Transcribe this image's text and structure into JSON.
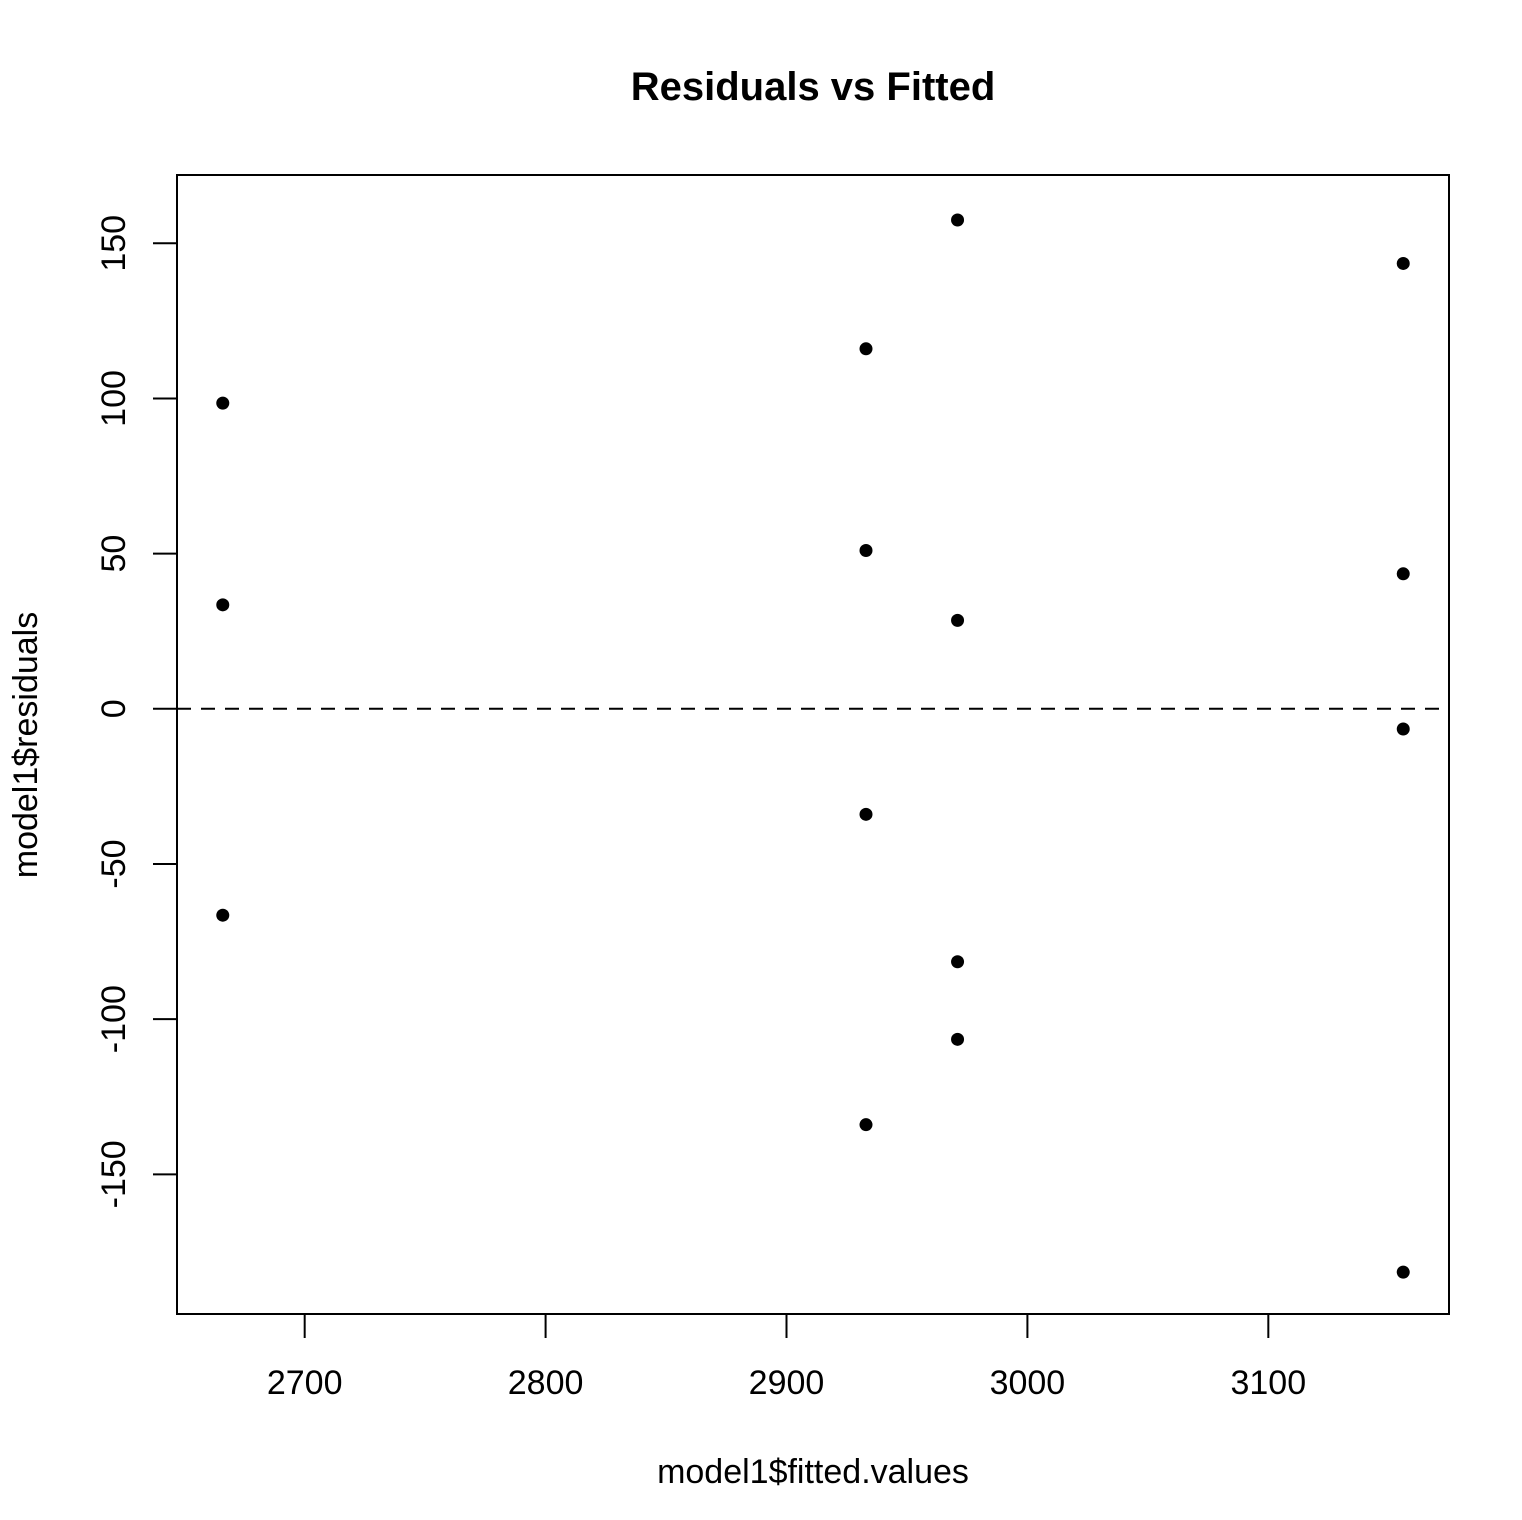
{
  "chart_data": {
    "type": "scatter",
    "title": "Residuals vs Fitted",
    "xlabel": "model1$fitted.values",
    "ylabel": "model1$residuals",
    "xlim": [
      2647,
      3175
    ],
    "ylim": [
      -195,
      172
    ],
    "x_ticks": [
      2700,
      2800,
      2900,
      3000,
      3100
    ],
    "x_tick_labels": [
      "2700",
      "2800",
      "2900",
      "3000",
      "3100"
    ],
    "y_ticks": [
      -150,
      -100,
      -50,
      0,
      50,
      100,
      150
    ],
    "y_tick_labels": [
      "-150",
      "-100",
      "-50",
      "0",
      "50",
      "100",
      "150"
    ],
    "reference_line": {
      "y": 0,
      "style": "dashed"
    },
    "grid": false,
    "point_color": "#000000",
    "series": [
      {
        "points": [
          {
            "x": 2666,
            "y": 98.5
          },
          {
            "x": 2666,
            "y": 33.5
          },
          {
            "x": 2666,
            "y": -66.5
          },
          {
            "x": 2933,
            "y": 116
          },
          {
            "x": 2933,
            "y": 51
          },
          {
            "x": 2933,
            "y": -34
          },
          {
            "x": 2933,
            "y": -134
          },
          {
            "x": 2971,
            "y": 157.5
          },
          {
            "x": 2971,
            "y": 28.5
          },
          {
            "x": 2971,
            "y": -81.5
          },
          {
            "x": 2971,
            "y": -106.5
          },
          {
            "x": 3156,
            "y": 143.5
          },
          {
            "x": 3156,
            "y": 43.5
          },
          {
            "x": 3156,
            "y": -6.5
          },
          {
            "x": 3156,
            "y": -181.5
          }
        ]
      }
    ]
  }
}
